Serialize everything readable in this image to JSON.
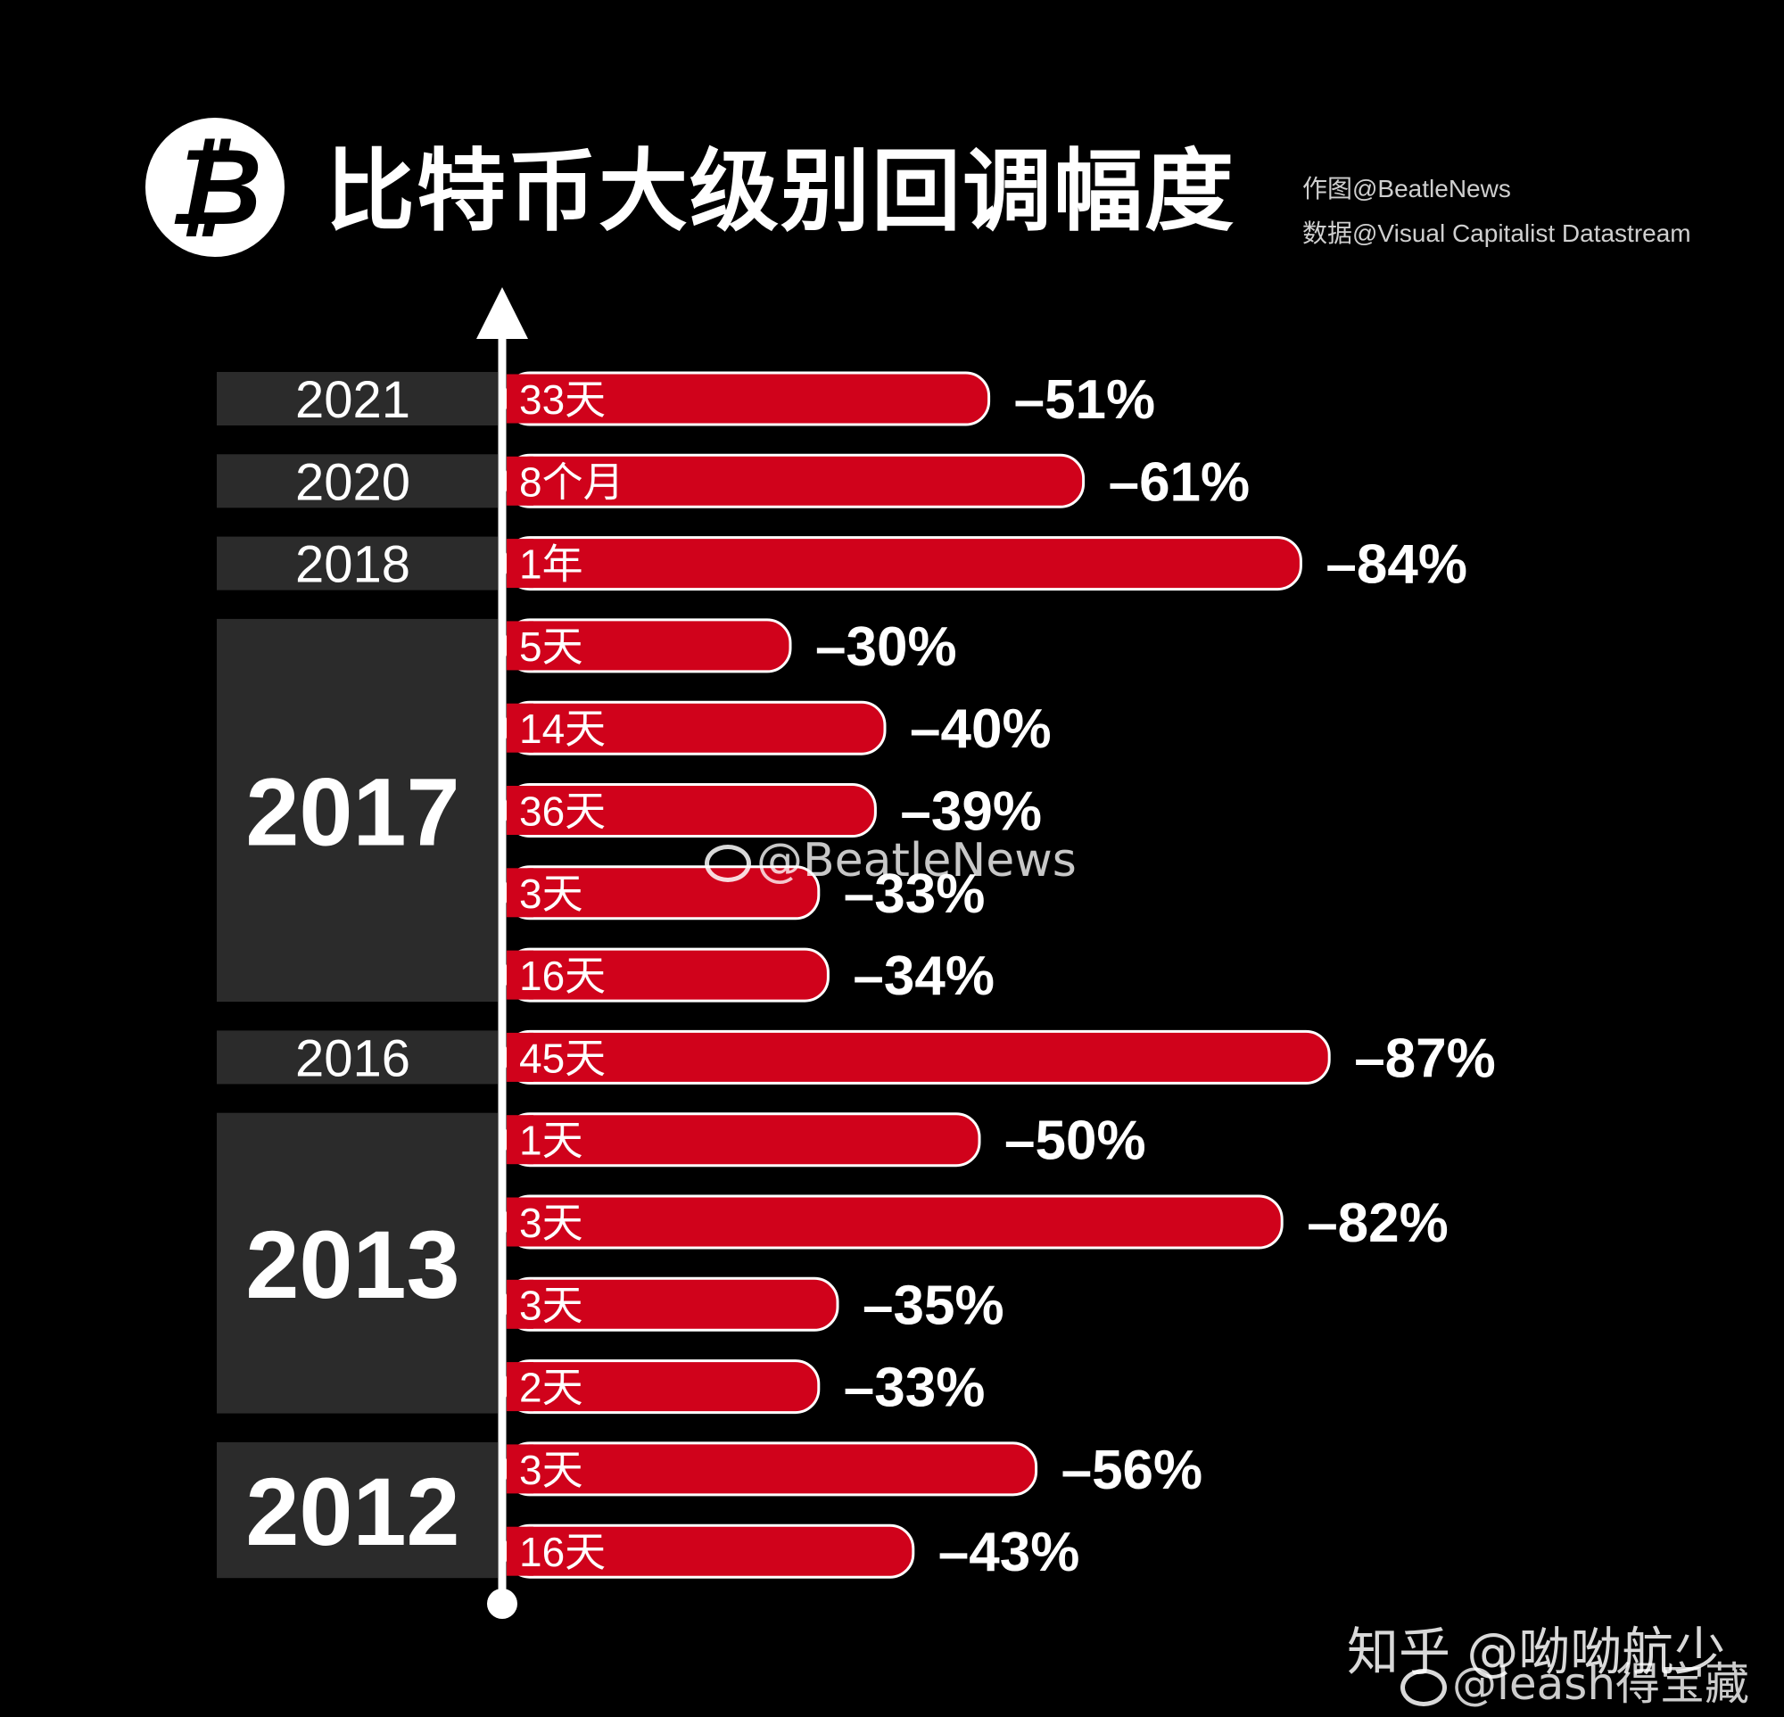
{
  "header": {
    "logo_glyph": "₿",
    "title": "比特币大级别回调幅度",
    "credit_author": "作图@BeatleNews",
    "credit_data": "数据@Visual Capitalist Datastream"
  },
  "colors": {
    "background": "#000000",
    "bar": "#d0021b",
    "bar_outline": "#ffffff",
    "year_panel": "#2b2b2b",
    "text": "#ffffff"
  },
  "chart_data": {
    "type": "bar",
    "orientation": "horizontal",
    "groups": [
      {
        "year": "2021",
        "rows": [
          {
            "duration": "33天",
            "drawdown": -51,
            "label": "–51%"
          }
        ]
      },
      {
        "year": "2020",
        "rows": [
          {
            "duration": "8个月",
            "drawdown": -61,
            "label": "–61%"
          }
        ]
      },
      {
        "year": "2018",
        "rows": [
          {
            "duration": "1年",
            "drawdown": -84,
            "label": "–84%"
          }
        ]
      },
      {
        "year": "2017",
        "rows": [
          {
            "duration": "5天",
            "drawdown": -30,
            "label": "–30%"
          },
          {
            "duration": "14天",
            "drawdown": -40,
            "label": "–40%"
          },
          {
            "duration": "36天",
            "drawdown": -39,
            "label": "–39%"
          },
          {
            "duration": "3天",
            "drawdown": -33,
            "label": "–33%"
          },
          {
            "duration": "16天",
            "drawdown": -34,
            "label": "–34%"
          }
        ]
      },
      {
        "year": "2016",
        "rows": [
          {
            "duration": "45天",
            "drawdown": -87,
            "label": "–87%"
          }
        ]
      },
      {
        "year": "2013",
        "rows": [
          {
            "duration": "1天",
            "drawdown": -50,
            "label": "–50%"
          },
          {
            "duration": "3天",
            "drawdown": -82,
            "label": "–82%"
          },
          {
            "duration": "3天",
            "drawdown": -35,
            "label": "–35%"
          },
          {
            "duration": "2天",
            "drawdown": -33,
            "label": "–33%"
          }
        ]
      },
      {
        "year": "2012",
        "rows": [
          {
            "duration": "3天",
            "drawdown": -56,
            "label": "–56%"
          },
          {
            "duration": "16天",
            "drawdown": -43,
            "label": "–43%"
          }
        ]
      }
    ]
  },
  "watermarks": {
    "center": "@BeatleNews",
    "zhihu": "知乎 @呦呦航少",
    "weibo": "@leash得宝藏"
  }
}
